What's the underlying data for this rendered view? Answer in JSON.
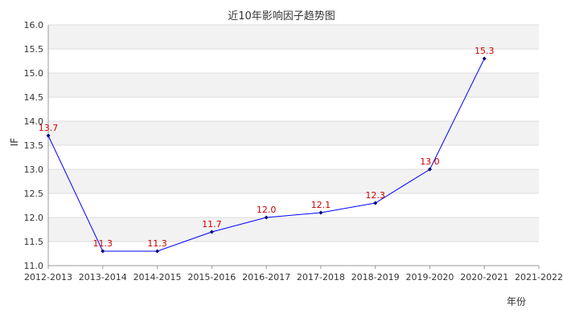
{
  "chart_data": {
    "type": "line",
    "title": "近10年影响因子趋势图",
    "xlabel": "年份",
    "ylabel": "IF",
    "categories": [
      "2012-2013",
      "2013-2014",
      "2014-2015",
      "2015-2016",
      "2016-2017",
      "2017-2018",
      "2018-2019",
      "2019-2020",
      "2020-2021",
      "2021-2022"
    ],
    "values": [
      13.7,
      11.3,
      11.3,
      11.7,
      12.0,
      12.1,
      12.3,
      13.0,
      15.3,
      null
    ],
    "data_labels": [
      "13.7",
      "11.3",
      "11.3",
      "11.7",
      "12.0",
      "12.1",
      "12.3",
      "13.0",
      "15.3",
      ""
    ],
    "y_ticks": [
      "11.0",
      "11.5",
      "12.0",
      "12.5",
      "13.0",
      "13.5",
      "14.0",
      "14.5",
      "15.0",
      "15.5",
      "16.0"
    ],
    "ylim": [
      11.0,
      16.0
    ],
    "grid": true,
    "legend": "none",
    "colors": {
      "line": "#0000ff",
      "marker": "#000080",
      "data_label": "#cc0000",
      "band": "#f2f2f2"
    }
  }
}
